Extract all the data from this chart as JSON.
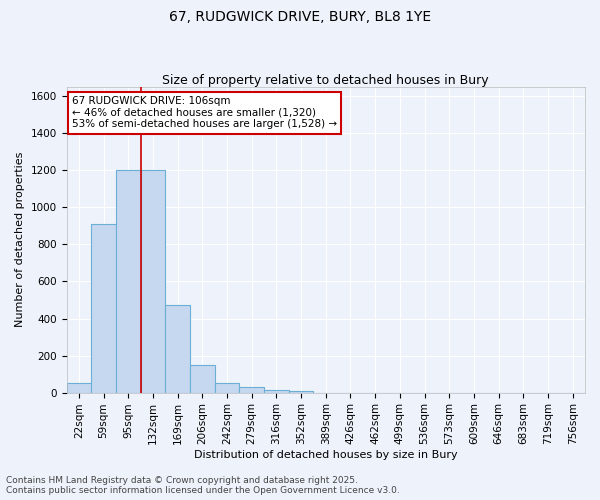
{
  "title_line1": "67, RUDGWICK DRIVE, BURY, BL8 1YE",
  "title_line2": "Size of property relative to detached houses in Bury",
  "xlabel": "Distribution of detached houses by size in Bury",
  "ylabel": "Number of detached properties",
  "categories": [
    "22sqm",
    "59sqm",
    "95sqm",
    "132sqm",
    "169sqm",
    "206sqm",
    "242sqm",
    "279sqm",
    "316sqm",
    "352sqm",
    "389sqm",
    "426sqm",
    "462sqm",
    "499sqm",
    "536sqm",
    "573sqm",
    "609sqm",
    "646sqm",
    "683sqm",
    "719sqm",
    "756sqm"
  ],
  "values": [
    50,
    910,
    1200,
    1200,
    475,
    150,
    50,
    30,
    15,
    8,
    0,
    0,
    0,
    0,
    0,
    0,
    0,
    0,
    0,
    0,
    0
  ],
  "bar_color": "#c5d8f0",
  "bar_edge_color": "#6baed6",
  "vline_x_index": 2,
  "vline_x_offset": 0.5,
  "vline_color": "#cc0000",
  "annotation_text": "67 RUDGWICK DRIVE: 106sqm\n← 46% of detached houses are smaller (1,320)\n53% of semi-detached houses are larger (1,528) →",
  "annotation_box_color": "#ffffff",
  "annotation_box_edge_color": "#cc0000",
  "ylim": [
    0,
    1650
  ],
  "yticks": [
    0,
    200,
    400,
    600,
    800,
    1000,
    1200,
    1400,
    1600
  ],
  "bg_color": "#eef2fb",
  "grid_color": "#ffffff",
  "footer_line1": "Contains HM Land Registry data © Crown copyright and database right 2025.",
  "footer_line2": "Contains public sector information licensed under the Open Government Licence v3.0.",
  "title_fontsize": 10,
  "subtitle_fontsize": 9,
  "axis_label_fontsize": 8,
  "tick_fontsize": 7.5,
  "annotation_fontsize": 7.5,
  "footer_fontsize": 6.5
}
